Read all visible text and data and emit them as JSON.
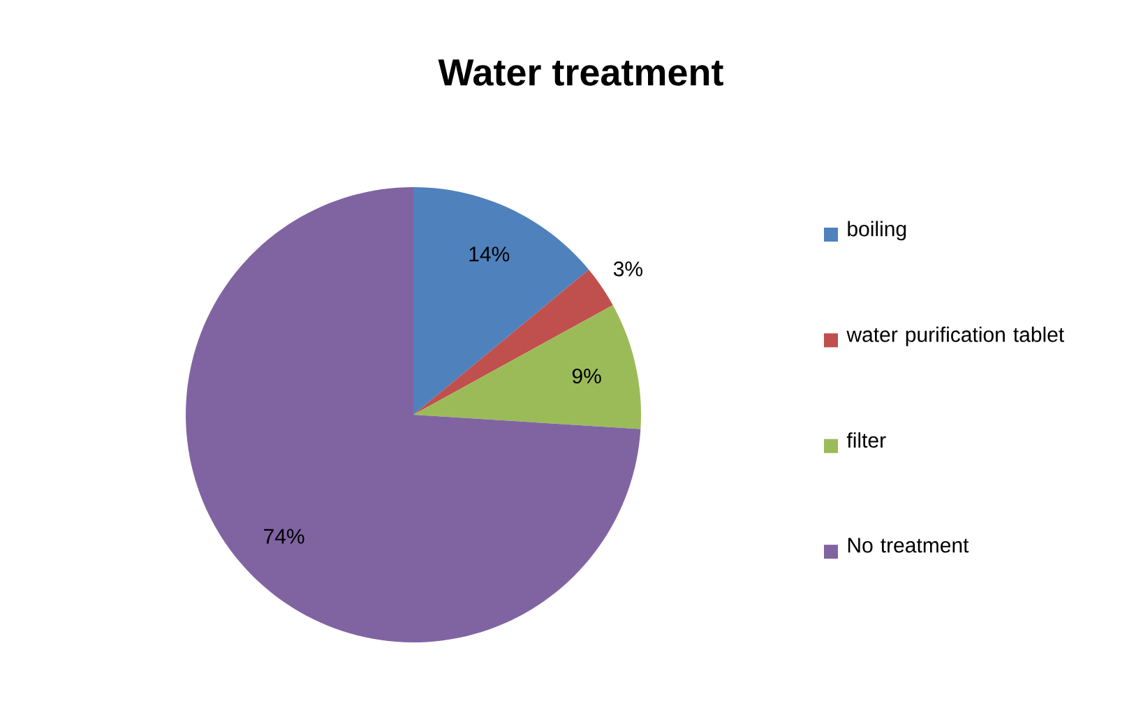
{
  "chart_data": {
    "type": "pie",
    "title": "Water treatment",
    "categories": [
      "boiling",
      "water purification tablet",
      "filter",
      "No treatment"
    ],
    "values": [
      14,
      3,
      9,
      74
    ],
    "colors": [
      "#4f81bd",
      "#c0504d",
      "#9bbb59",
      "#8064a2"
    ],
    "value_labels": [
      "14%",
      "3%",
      "9%",
      "74%"
    ],
    "legend": "right"
  }
}
